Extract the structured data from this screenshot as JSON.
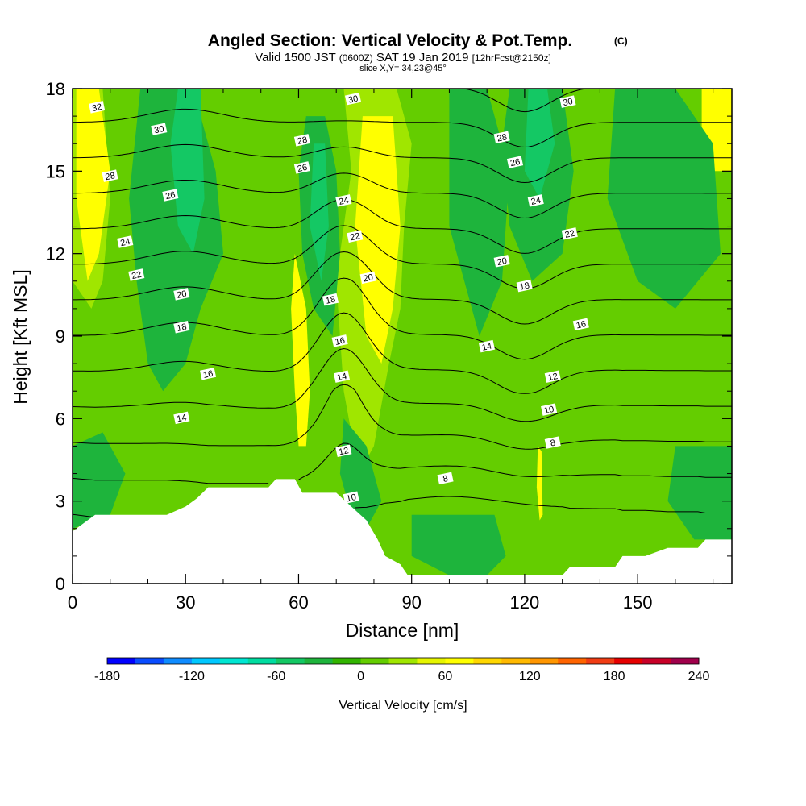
{
  "header": {
    "title": "Angled Section: Vertical Velocity & Pot.Temp.",
    "title_unit": "(C)",
    "valid_prefix": "Valid 1500 JST",
    "valid_zulu": "(0600Z)",
    "valid_date": "SAT 19 Jan 2019",
    "forecast": "[12hrFcst@2150z]",
    "slice": "slice X,Y= 34,23@45°"
  },
  "colors": {
    "terrain": "#ffffff",
    "frame": "#000000",
    "contour": "#000000",
    "palette": [
      "#0000ff",
      "#0a4cff",
      "#0f8cff",
      "#00c8ff",
      "#00e6d2",
      "#00dca0",
      "#14c864",
      "#1eb43c",
      "#32b400",
      "#64cd00",
      "#a0e600",
      "#e6f500",
      "#ffff00",
      "#ffd700",
      "#ffb900",
      "#ff9600",
      "#ff6400",
      "#f03c14",
      "#e60000",
      "#c80028",
      "#a0004b",
      "#820064",
      "#64008c"
    ]
  },
  "chart_data": {
    "type": "heatmap",
    "xlabel": "Distance [nm]",
    "ylabel": "Height [Kft MSL]",
    "xlim": [
      0,
      175
    ],
    "ylim": [
      0,
      18
    ],
    "xticks": [
      0,
      30,
      60,
      90,
      120,
      150
    ],
    "yticks": [
      0,
      3,
      6,
      9,
      12,
      15,
      18
    ],
    "grid": false,
    "colorbar": {
      "label": "Vertical Velocity [cm/s]",
      "min": -180,
      "max": 240,
      "step": 20,
      "tick_values": [
        -180,
        -120,
        -60,
        0,
        60,
        120,
        180,
        240
      ],
      "tick_labels": [
        "-180",
        "-120",
        "-60",
        "0",
        "60",
        "120",
        "180",
        "240"
      ]
    },
    "terrain_height_kft": [
      [
        0,
        1.9
      ],
      [
        3,
        2.2
      ],
      [
        6,
        2.5
      ],
      [
        25,
        2.5
      ],
      [
        30,
        2.8
      ],
      [
        33,
        3.1
      ],
      [
        36,
        3.5
      ],
      [
        52,
        3.5
      ],
      [
        54,
        3.8
      ],
      [
        59,
        3.8
      ],
      [
        61,
        3.3
      ],
      [
        70,
        3.3
      ],
      [
        74,
        2.8
      ],
      [
        78,
        2.3
      ],
      [
        81,
        1.6
      ],
      [
        83,
        1.0
      ],
      [
        87,
        0.7
      ],
      [
        89,
        0.3
      ],
      [
        97,
        0.3
      ],
      [
        100,
        0.3
      ],
      [
        130,
        0.3
      ],
      [
        132,
        0.6
      ],
      [
        144,
        0.6
      ],
      [
        146,
        1.0
      ],
      [
        152,
        1.0
      ],
      [
        158,
        1.3
      ],
      [
        166,
        1.3
      ],
      [
        168,
        1.6
      ],
      [
        175,
        1.6
      ]
    ],
    "velocity_field": [
      {
        "name": "updraft-w0",
        "value": 60,
        "x": [
          0,
          2,
          5,
          4,
          0
        ],
        "y": [
          18,
          18,
          15,
          12,
          12
        ]
      },
      {
        "name": "updraft-w1",
        "value": 30,
        "x": [
          0,
          8,
          10,
          8,
          5,
          0
        ],
        "y": [
          18,
          18,
          14,
          11,
          10,
          11
        ]
      },
      {
        "name": "updraft-w2",
        "value": 60,
        "x": [
          1,
          7,
          10,
          7,
          4,
          1
        ],
        "y": [
          18,
          18,
          15,
          12,
          11,
          14
        ]
      },
      {
        "name": "updraft-e",
        "value": 60,
        "x": [
          167,
          175,
          175,
          167
        ],
        "y": [
          18,
          18,
          15,
          15
        ]
      },
      {
        "name": "updraft-mid",
        "value": 30,
        "x": [
          72,
          86,
          90,
          88,
          87,
          84,
          80,
          76,
          72,
          70,
          74
        ],
        "y": [
          18,
          18,
          16,
          13,
          10,
          8,
          5,
          4,
          7,
          11,
          15
        ]
      },
      {
        "name": "updraft-core",
        "value": 60,
        "x": [
          77,
          85,
          87,
          85,
          82,
          78,
          75
        ],
        "y": [
          17,
          17,
          13,
          10,
          8,
          9,
          13
        ]
      },
      {
        "name": "updraft-narrow",
        "value": 60,
        "x": [
          59,
          62,
          63,
          62,
          60,
          59,
          58
        ],
        "y": [
          12,
          10,
          7,
          5,
          5,
          7,
          10
        ]
      },
      {
        "name": "updraft-spike",
        "value": 60,
        "x": [
          123.5,
          124.5,
          124.8,
          124,
          123.2
        ],
        "y": [
          5,
          4.8,
          2.5,
          2.3,
          3.5
        ]
      },
      {
        "name": "downdraft-a",
        "value": -40,
        "x": [
          18,
          32,
          38,
          40,
          34,
          30,
          24,
          20,
          17,
          15
        ],
        "y": [
          18,
          18,
          15,
          12,
          10,
          8,
          7,
          8,
          11,
          14
        ]
      },
      {
        "name": "downdraft-a2",
        "value": -60,
        "x": [
          28,
          34,
          35,
          32,
          28,
          26
        ],
        "y": [
          18,
          18,
          14,
          12,
          13,
          16
        ]
      },
      {
        "name": "downdraft-b",
        "value": -40,
        "x": [
          62,
          67,
          70,
          71,
          69,
          64,
          61,
          60
        ],
        "y": [
          17,
          17,
          15,
          12,
          9,
          10,
          12,
          15
        ]
      },
      {
        "name": "downdraft-b2",
        "value": -60,
        "x": [
          64,
          67,
          68,
          66,
          63
        ],
        "y": [
          16,
          16,
          13,
          11,
          13
        ]
      },
      {
        "name": "downdraft-c",
        "value": -40,
        "x": [
          116,
          124,
          130,
          133,
          130,
          122,
          116,
          114
        ],
        "y": [
          18,
          18,
          18,
          15,
          12,
          11,
          13,
          16
        ]
      },
      {
        "name": "downdraft-c2",
        "value": -60,
        "x": [
          121,
          126,
          128,
          124,
          120
        ],
        "y": [
          18,
          18,
          16,
          14,
          15
        ]
      },
      {
        "name": "downdraft-low",
        "value": -40,
        "x": [
          72,
          78,
          82,
          78,
          74,
          71
        ],
        "y": [
          6,
          5,
          3,
          2,
          2.5,
          4
        ]
      },
      {
        "name": "weak-down-1",
        "value": -30,
        "x": [
          100,
          110,
          116,
          114,
          108,
          100
        ],
        "y": [
          18,
          18,
          15,
          11,
          9,
          13
        ]
      },
      {
        "name": "weak-down-2",
        "value": -30,
        "x": [
          144,
          160,
          170,
          172,
          160,
          150,
          142
        ],
        "y": [
          18,
          18,
          16,
          12,
          10,
          11,
          14
        ]
      },
      {
        "name": "weak-down-3",
        "value": -30,
        "x": [
          160,
          175,
          175,
          165,
          158
        ],
        "y": [
          5,
          5,
          1.6,
          1.6,
          3
        ]
      },
      {
        "name": "weak-down-4",
        "value": -30,
        "x": [
          90,
          112,
          115,
          110,
          100,
          90
        ],
        "y": [
          2.5,
          2.5,
          1.0,
          0.3,
          0.3,
          1
        ]
      },
      {
        "name": "weak-down-5",
        "value": -30,
        "x": [
          0,
          8,
          14,
          10,
          4,
          0
        ],
        "y": [
          5,
          5.5,
          4,
          2.5,
          2.2,
          2
        ]
      }
    ],
    "theta_contours_c": [
      8,
      10,
      12,
      14,
      16,
      18,
      20,
      22,
      24,
      26,
      28,
      30,
      32
    ],
    "contour_labels": [
      {
        "text": "32",
        "x": 6.5,
        "y": 17.3
      },
      {
        "text": "30",
        "x": 23,
        "y": 16.5
      },
      {
        "text": "28",
        "x": 10,
        "y": 14.8
      },
      {
        "text": "26",
        "x": 26,
        "y": 14.1
      },
      {
        "text": "24",
        "x": 14,
        "y": 12.4
      },
      {
        "text": "22",
        "x": 17,
        "y": 11.2
      },
      {
        "text": "20",
        "x": 29,
        "y": 10.5
      },
      {
        "text": "18",
        "x": 29,
        "y": 9.3
      },
      {
        "text": "16",
        "x": 36,
        "y": 7.6
      },
      {
        "text": "14",
        "x": 29,
        "y": 6.0
      },
      {
        "text": "30",
        "x": 74.5,
        "y": 17.6
      },
      {
        "text": "28",
        "x": 61,
        "y": 16.1
      },
      {
        "text": "26",
        "x": 61,
        "y": 15.1
      },
      {
        "text": "24",
        "x": 72,
        "y": 13.9
      },
      {
        "text": "22",
        "x": 75,
        "y": 12.6
      },
      {
        "text": "20",
        "x": 78.5,
        "y": 11.1
      },
      {
        "text": "18",
        "x": 68.5,
        "y": 10.3
      },
      {
        "text": "16",
        "x": 71,
        "y": 8.8
      },
      {
        "text": "14",
        "x": 71.5,
        "y": 7.5
      },
      {
        "text": "12",
        "x": 72,
        "y": 4.8
      },
      {
        "text": "10",
        "x": 74,
        "y": 3.1
      },
      {
        "text": "8",
        "x": 99,
        "y": 3.8
      },
      {
        "text": "30",
        "x": 131.5,
        "y": 17.5
      },
      {
        "text": "28",
        "x": 114,
        "y": 16.2
      },
      {
        "text": "26",
        "x": 117.5,
        "y": 15.3
      },
      {
        "text": "24",
        "x": 123,
        "y": 13.9
      },
      {
        "text": "22",
        "x": 132,
        "y": 12.7
      },
      {
        "text": "20",
        "x": 114,
        "y": 11.7
      },
      {
        "text": "18",
        "x": 120,
        "y": 10.8
      },
      {
        "text": "16",
        "x": 135,
        "y": 9.4
      },
      {
        "text": "14",
        "x": 110,
        "y": 8.6
      },
      {
        "text": "12",
        "x": 127.5,
        "y": 7.5
      },
      {
        "text": "10",
        "x": 126.5,
        "y": 6.3
      },
      {
        "text": "8",
        "x": 127.5,
        "y": 5.1
      }
    ]
  }
}
